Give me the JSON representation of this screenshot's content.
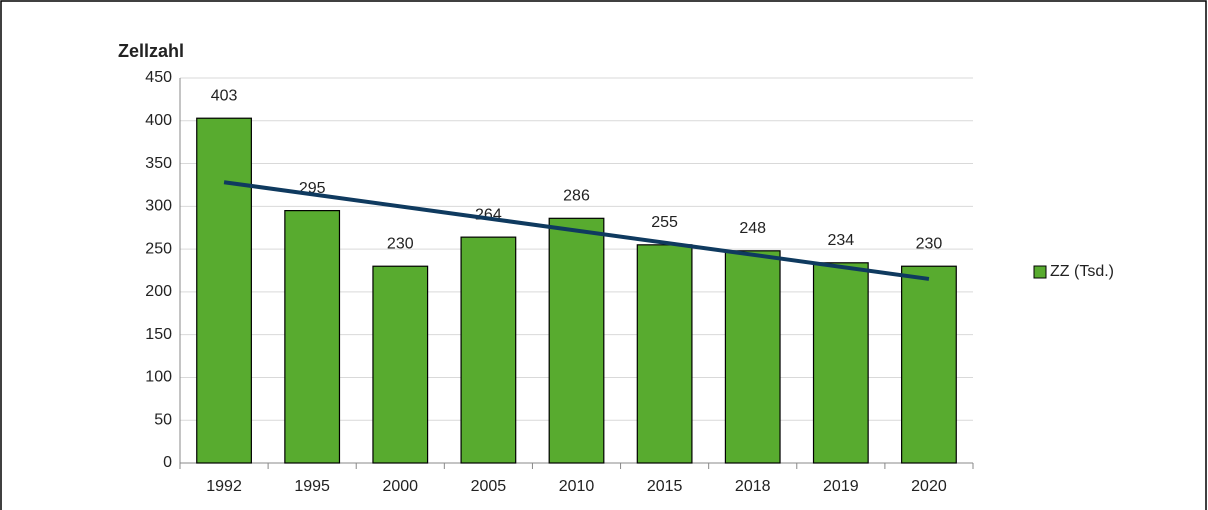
{
  "chart_data": {
    "type": "bar",
    "y_title": "Zellzahl",
    "categories": [
      "1992",
      "1995",
      "2000",
      "2005",
      "2010",
      "2015",
      "2018",
      "2019",
      "2020"
    ],
    "series": [
      {
        "name": "ZZ (Tsd.)",
        "color": "#58ab2f",
        "values": [
          403,
          295,
          230,
          264,
          286,
          255,
          248,
          234,
          230
        ]
      }
    ],
    "ylim": [
      0,
      450
    ],
    "yticks": [
      0,
      50,
      100,
      150,
      200,
      250,
      300,
      350,
      400,
      450
    ],
    "grid": true,
    "data_labels": true,
    "legend": "right",
    "trendline": {
      "type": "linear",
      "color": "#0f3a5f"
    }
  }
}
